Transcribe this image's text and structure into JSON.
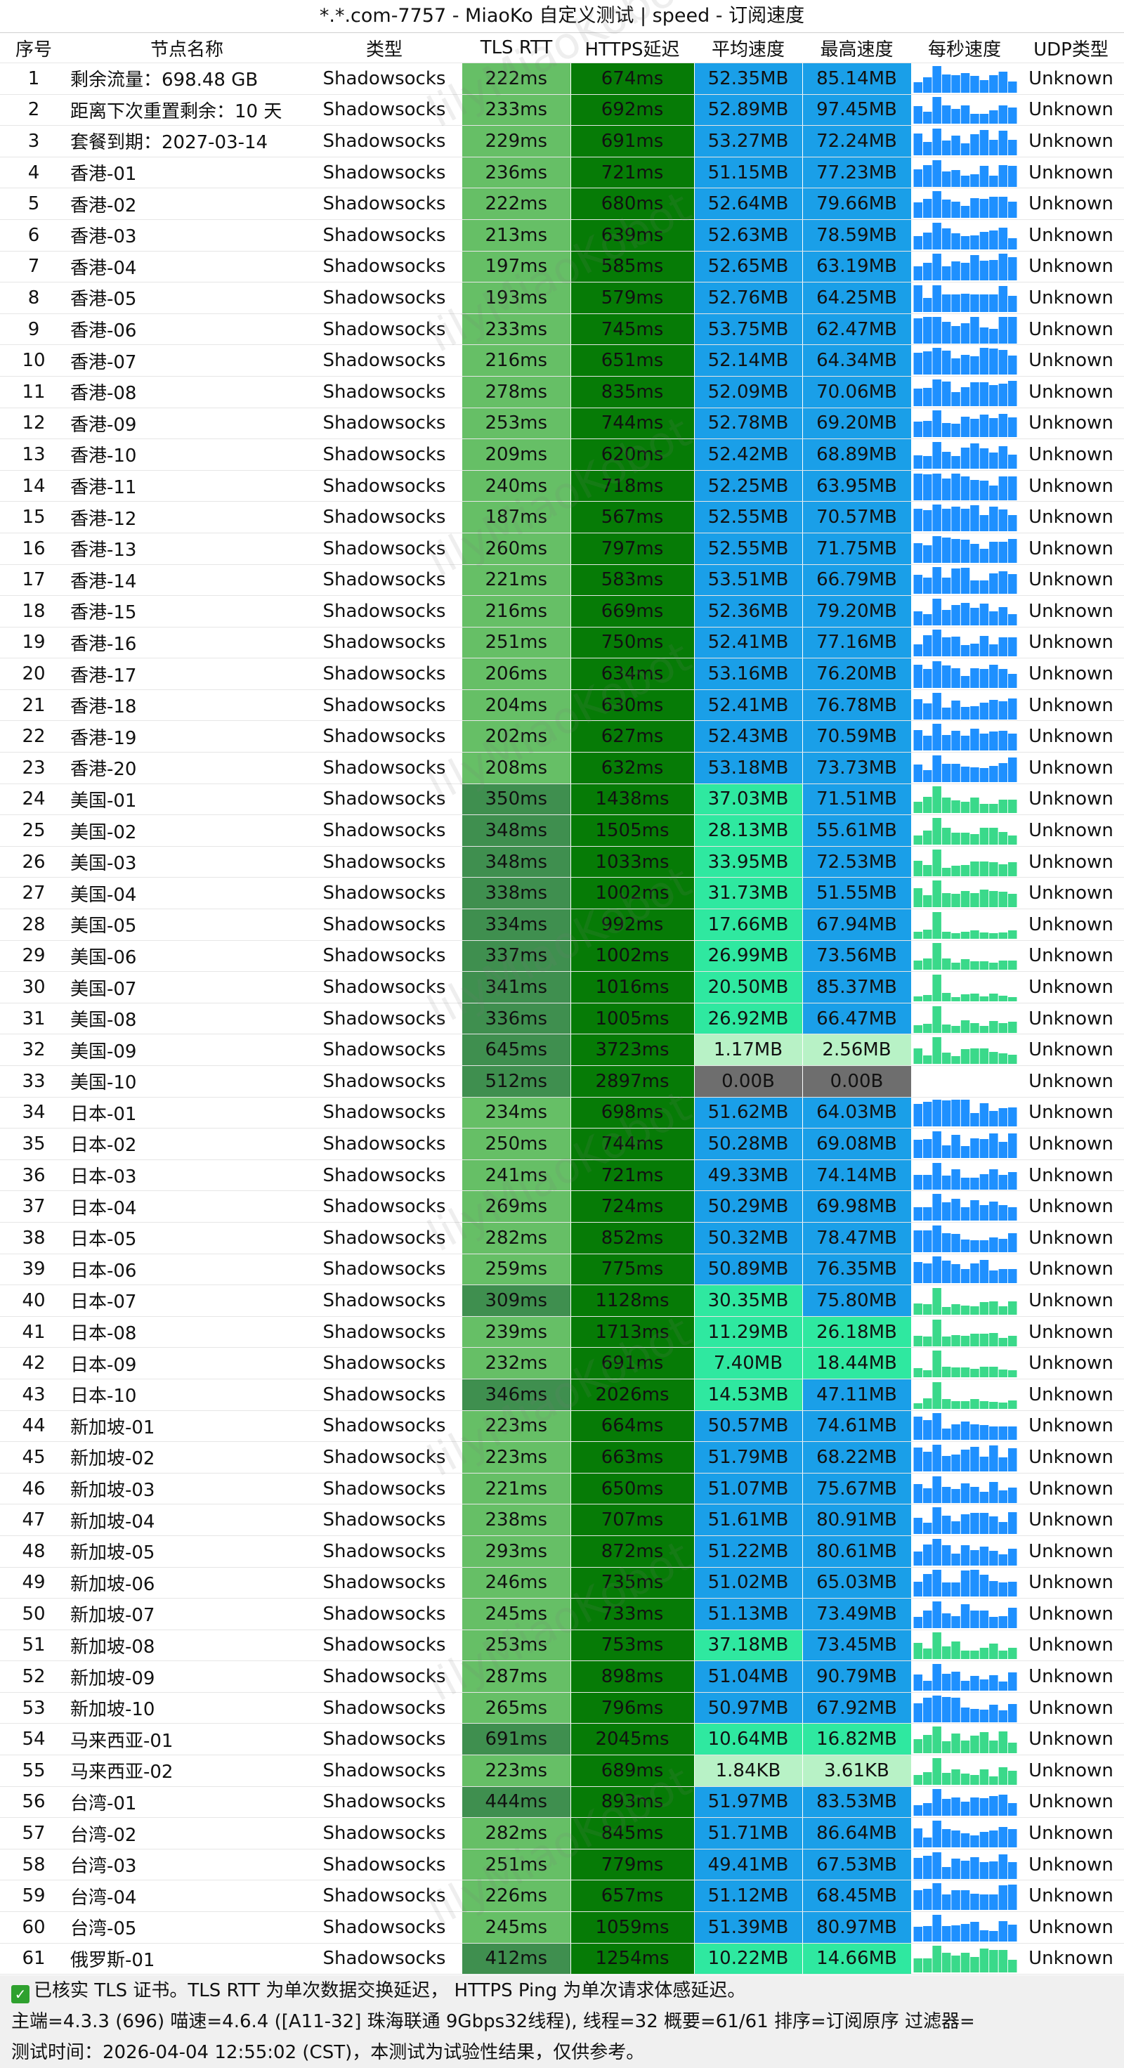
{
  "title": "*.*.com-7757 - MiaoKo 自定义测试 | speed - 订阅速度",
  "watermark": "lilyMiaoKobot",
  "headers": [
    "序号",
    "节点名称",
    "类型",
    "TLS RTT",
    "HTTPS延迟",
    "平均速度",
    "最高速度",
    "每秒速度",
    "UDP类型"
  ],
  "rows": [
    {
      "idx": "1",
      "name": "剩余流量：698.48 GB",
      "type": "Shadowsocks",
      "rtt": "222ms",
      "https": "674ms",
      "avg": "52.35MB",
      "max": "85.14MB",
      "udp": "Unknown"
    },
    {
      "idx": "2",
      "name": "距离下次重置剩余：10 天",
      "type": "Shadowsocks",
      "rtt": "233ms",
      "https": "692ms",
      "avg": "52.89MB",
      "max": "97.45MB",
      "udp": "Unknown"
    },
    {
      "idx": "3",
      "name": "套餐到期：2027-03-14",
      "type": "Shadowsocks",
      "rtt": "229ms",
      "https": "691ms",
      "avg": "53.27MB",
      "max": "72.24MB",
      "udp": "Unknown"
    },
    {
      "idx": "4",
      "name": "香港-01",
      "type": "Shadowsocks",
      "rtt": "236ms",
      "https": "721ms",
      "avg": "51.15MB",
      "max": "77.23MB",
      "udp": "Unknown"
    },
    {
      "idx": "5",
      "name": "香港-02",
      "type": "Shadowsocks",
      "rtt": "222ms",
      "https": "680ms",
      "avg": "52.64MB",
      "max": "79.66MB",
      "udp": "Unknown"
    },
    {
      "idx": "6",
      "name": "香港-03",
      "type": "Shadowsocks",
      "rtt": "213ms",
      "https": "639ms",
      "avg": "52.63MB",
      "max": "78.59MB",
      "udp": "Unknown"
    },
    {
      "idx": "7",
      "name": "香港-04",
      "type": "Shadowsocks",
      "rtt": "197ms",
      "https": "585ms",
      "avg": "52.65MB",
      "max": "63.19MB",
      "udp": "Unknown"
    },
    {
      "idx": "8",
      "name": "香港-05",
      "type": "Shadowsocks",
      "rtt": "193ms",
      "https": "579ms",
      "avg": "52.76MB",
      "max": "64.25MB",
      "udp": "Unknown"
    },
    {
      "idx": "9",
      "name": "香港-06",
      "type": "Shadowsocks",
      "rtt": "233ms",
      "https": "745ms",
      "avg": "53.75MB",
      "max": "62.47MB",
      "udp": "Unknown"
    },
    {
      "idx": "10",
      "name": "香港-07",
      "type": "Shadowsocks",
      "rtt": "216ms",
      "https": "651ms",
      "avg": "52.14MB",
      "max": "64.34MB",
      "udp": "Unknown"
    },
    {
      "idx": "11",
      "name": "香港-08",
      "type": "Shadowsocks",
      "rtt": "278ms",
      "https": "835ms",
      "avg": "52.09MB",
      "max": "70.06MB",
      "udp": "Unknown"
    },
    {
      "idx": "12",
      "name": "香港-09",
      "type": "Shadowsocks",
      "rtt": "253ms",
      "https": "744ms",
      "avg": "52.78MB",
      "max": "69.20MB",
      "udp": "Unknown"
    },
    {
      "idx": "13",
      "name": "香港-10",
      "type": "Shadowsocks",
      "rtt": "209ms",
      "https": "620ms",
      "avg": "52.42MB",
      "max": "68.89MB",
      "udp": "Unknown"
    },
    {
      "idx": "14",
      "name": "香港-11",
      "type": "Shadowsocks",
      "rtt": "240ms",
      "https": "718ms",
      "avg": "52.25MB",
      "max": "63.95MB",
      "udp": "Unknown"
    },
    {
      "idx": "15",
      "name": "香港-12",
      "type": "Shadowsocks",
      "rtt": "187ms",
      "https": "567ms",
      "avg": "52.55MB",
      "max": "70.57MB",
      "udp": "Unknown"
    },
    {
      "idx": "16",
      "name": "香港-13",
      "type": "Shadowsocks",
      "rtt": "260ms",
      "https": "797ms",
      "avg": "52.55MB",
      "max": "71.75MB",
      "udp": "Unknown"
    },
    {
      "idx": "17",
      "name": "香港-14",
      "type": "Shadowsocks",
      "rtt": "221ms",
      "https": "583ms",
      "avg": "53.51MB",
      "max": "66.79MB",
      "udp": "Unknown"
    },
    {
      "idx": "18",
      "name": "香港-15",
      "type": "Shadowsocks",
      "rtt": "216ms",
      "https": "669ms",
      "avg": "52.36MB",
      "max": "79.20MB",
      "udp": "Unknown"
    },
    {
      "idx": "19",
      "name": "香港-16",
      "type": "Shadowsocks",
      "rtt": "251ms",
      "https": "750ms",
      "avg": "52.41MB",
      "max": "77.16MB",
      "udp": "Unknown"
    },
    {
      "idx": "20",
      "name": "香港-17",
      "type": "Shadowsocks",
      "rtt": "206ms",
      "https": "634ms",
      "avg": "53.16MB",
      "max": "76.20MB",
      "udp": "Unknown"
    },
    {
      "idx": "21",
      "name": "香港-18",
      "type": "Shadowsocks",
      "rtt": "204ms",
      "https": "630ms",
      "avg": "52.41MB",
      "max": "76.78MB",
      "udp": "Unknown"
    },
    {
      "idx": "22",
      "name": "香港-19",
      "type": "Shadowsocks",
      "rtt": "202ms",
      "https": "627ms",
      "avg": "52.43MB",
      "max": "70.59MB",
      "udp": "Unknown"
    },
    {
      "idx": "23",
      "name": "香港-20",
      "type": "Shadowsocks",
      "rtt": "208ms",
      "https": "632ms",
      "avg": "53.18MB",
      "max": "73.73MB",
      "udp": "Unknown"
    },
    {
      "idx": "24",
      "name": "美国-01",
      "type": "Shadowsocks",
      "rtt": "350ms",
      "https": "1438ms",
      "avg": "37.03MB",
      "max": "71.51MB",
      "udp": "Unknown"
    },
    {
      "idx": "25",
      "name": "美国-02",
      "type": "Shadowsocks",
      "rtt": "348ms",
      "https": "1505ms",
      "avg": "28.13MB",
      "max": "55.61MB",
      "udp": "Unknown"
    },
    {
      "idx": "26",
      "name": "美国-03",
      "type": "Shadowsocks",
      "rtt": "348ms",
      "https": "1033ms",
      "avg": "33.95MB",
      "max": "72.53MB",
      "udp": "Unknown"
    },
    {
      "idx": "27",
      "name": "美国-04",
      "type": "Shadowsocks",
      "rtt": "338ms",
      "https": "1002ms",
      "avg": "31.73MB",
      "max": "51.55MB",
      "udp": "Unknown"
    },
    {
      "idx": "28",
      "name": "美国-05",
      "type": "Shadowsocks",
      "rtt": "334ms",
      "https": "992ms",
      "avg": "17.66MB",
      "max": "67.94MB",
      "udp": "Unknown"
    },
    {
      "idx": "29",
      "name": "美国-06",
      "type": "Shadowsocks",
      "rtt": "337ms",
      "https": "1002ms",
      "avg": "26.99MB",
      "max": "73.56MB",
      "udp": "Unknown"
    },
    {
      "idx": "30",
      "name": "美国-07",
      "type": "Shadowsocks",
      "rtt": "341ms",
      "https": "1016ms",
      "avg": "20.50MB",
      "max": "85.37MB",
      "udp": "Unknown"
    },
    {
      "idx": "31",
      "name": "美国-08",
      "type": "Shadowsocks",
      "rtt": "336ms",
      "https": "1005ms",
      "avg": "26.92MB",
      "max": "66.47MB",
      "udp": "Unknown"
    },
    {
      "idx": "32",
      "name": "美国-09",
      "type": "Shadowsocks",
      "rtt": "645ms",
      "https": "3723ms",
      "avg": "1.17MB",
      "max": "2.56MB",
      "udp": "Unknown"
    },
    {
      "idx": "33",
      "name": "美国-10",
      "type": "Shadowsocks",
      "rtt": "512ms",
      "https": "2897ms",
      "avg": "0.00B",
      "max": "0.00B",
      "udp": "Unknown"
    },
    {
      "idx": "34",
      "name": "日本-01",
      "type": "Shadowsocks",
      "rtt": "234ms",
      "https": "698ms",
      "avg": "51.62MB",
      "max": "64.03MB",
      "udp": "Unknown"
    },
    {
      "idx": "35",
      "name": "日本-02",
      "type": "Shadowsocks",
      "rtt": "250ms",
      "https": "744ms",
      "avg": "50.28MB",
      "max": "69.08MB",
      "udp": "Unknown"
    },
    {
      "idx": "36",
      "name": "日本-03",
      "type": "Shadowsocks",
      "rtt": "241ms",
      "https": "721ms",
      "avg": "49.33MB",
      "max": "74.14MB",
      "udp": "Unknown"
    },
    {
      "idx": "37",
      "name": "日本-04",
      "type": "Shadowsocks",
      "rtt": "269ms",
      "https": "724ms",
      "avg": "50.29MB",
      "max": "69.98MB",
      "udp": "Unknown"
    },
    {
      "idx": "38",
      "name": "日本-05",
      "type": "Shadowsocks",
      "rtt": "282ms",
      "https": "852ms",
      "avg": "50.32MB",
      "max": "78.47MB",
      "udp": "Unknown"
    },
    {
      "idx": "39",
      "name": "日本-06",
      "type": "Shadowsocks",
      "rtt": "259ms",
      "https": "775ms",
      "avg": "50.89MB",
      "max": "76.35MB",
      "udp": "Unknown"
    },
    {
      "idx": "40",
      "name": "日本-07",
      "type": "Shadowsocks",
      "rtt": "309ms",
      "https": "1128ms",
      "avg": "30.35MB",
      "max": "75.80MB",
      "udp": "Unknown"
    },
    {
      "idx": "41",
      "name": "日本-08",
      "type": "Shadowsocks",
      "rtt": "239ms",
      "https": "1713ms",
      "avg": "11.29MB",
      "max": "26.18MB",
      "udp": "Unknown"
    },
    {
      "idx": "42",
      "name": "日本-09",
      "type": "Shadowsocks",
      "rtt": "232ms",
      "https": "691ms",
      "avg": "7.40MB",
      "max": "18.44MB",
      "udp": "Unknown"
    },
    {
      "idx": "43",
      "name": "日本-10",
      "type": "Shadowsocks",
      "rtt": "346ms",
      "https": "2026ms",
      "avg": "14.53MB",
      "max": "47.11MB",
      "udp": "Unknown"
    },
    {
      "idx": "44",
      "name": "新加坡-01",
      "type": "Shadowsocks",
      "rtt": "223ms",
      "https": "664ms",
      "avg": "50.57MB",
      "max": "74.61MB",
      "udp": "Unknown"
    },
    {
      "idx": "45",
      "name": "新加坡-02",
      "type": "Shadowsocks",
      "rtt": "223ms",
      "https": "663ms",
      "avg": "51.79MB",
      "max": "68.22MB",
      "udp": "Unknown"
    },
    {
      "idx": "46",
      "name": "新加坡-03",
      "type": "Shadowsocks",
      "rtt": "221ms",
      "https": "650ms",
      "avg": "51.07MB",
      "max": "75.67MB",
      "udp": "Unknown"
    },
    {
      "idx": "47",
      "name": "新加坡-04",
      "type": "Shadowsocks",
      "rtt": "238ms",
      "https": "707ms",
      "avg": "51.61MB",
      "max": "80.91MB",
      "udp": "Unknown"
    },
    {
      "idx": "48",
      "name": "新加坡-05",
      "type": "Shadowsocks",
      "rtt": "293ms",
      "https": "872ms",
      "avg": "51.22MB",
      "max": "80.61MB",
      "udp": "Unknown"
    },
    {
      "idx": "49",
      "name": "新加坡-06",
      "type": "Shadowsocks",
      "rtt": "246ms",
      "https": "735ms",
      "avg": "51.02MB",
      "max": "65.03MB",
      "udp": "Unknown"
    },
    {
      "idx": "50",
      "name": "新加坡-07",
      "type": "Shadowsocks",
      "rtt": "245ms",
      "https": "733ms",
      "avg": "51.13MB",
      "max": "73.49MB",
      "udp": "Unknown"
    },
    {
      "idx": "51",
      "name": "新加坡-08",
      "type": "Shadowsocks",
      "rtt": "253ms",
      "https": "753ms",
      "avg": "37.18MB",
      "max": "73.45MB",
      "udp": "Unknown"
    },
    {
      "idx": "52",
      "name": "新加坡-09",
      "type": "Shadowsocks",
      "rtt": "287ms",
      "https": "898ms",
      "avg": "51.04MB",
      "max": "90.79MB",
      "udp": "Unknown"
    },
    {
      "idx": "53",
      "name": "新加坡-10",
      "type": "Shadowsocks",
      "rtt": "265ms",
      "https": "796ms",
      "avg": "50.97MB",
      "max": "67.92MB",
      "udp": "Unknown"
    },
    {
      "idx": "54",
      "name": "马来西亚-01",
      "type": "Shadowsocks",
      "rtt": "691ms",
      "https": "2045ms",
      "avg": "10.64MB",
      "max": "16.82MB",
      "udp": "Unknown"
    },
    {
      "idx": "55",
      "name": "马来西亚-02",
      "type": "Shadowsocks",
      "rtt": "223ms",
      "https": "689ms",
      "avg": "1.84KB",
      "max": "3.61KB",
      "udp": "Unknown"
    },
    {
      "idx": "56",
      "name": "台湾-01",
      "type": "Shadowsocks",
      "rtt": "444ms",
      "https": "893ms",
      "avg": "51.97MB",
      "max": "83.53MB",
      "udp": "Unknown"
    },
    {
      "idx": "57",
      "name": "台湾-02",
      "type": "Shadowsocks",
      "rtt": "282ms",
      "https": "845ms",
      "avg": "51.71MB",
      "max": "86.64MB",
      "udp": "Unknown"
    },
    {
      "idx": "58",
      "name": "台湾-03",
      "type": "Shadowsocks",
      "rtt": "251ms",
      "https": "779ms",
      "avg": "49.41MB",
      "max": "67.53MB",
      "udp": "Unknown"
    },
    {
      "idx": "59",
      "name": "台湾-04",
      "type": "Shadowsocks",
      "rtt": "226ms",
      "https": "657ms",
      "avg": "51.12MB",
      "max": "68.45MB",
      "udp": "Unknown"
    },
    {
      "idx": "60",
      "name": "台湾-05",
      "type": "Shadowsocks",
      "rtt": "245ms",
      "https": "1059ms",
      "avg": "51.39MB",
      "max": "80.97MB",
      "udp": "Unknown"
    },
    {
      "idx": "61",
      "name": "俄罗斯-01",
      "type": "Shadowsocks",
      "rtt": "412ms",
      "https": "1254ms",
      "avg": "10.22MB",
      "max": "14.66MB",
      "udp": "Unknown"
    }
  ],
  "footer": {
    "line1": "已核实 TLS 证书。TLS RTT 为单次数据交换延迟， HTTPS Ping 为单次请求体感延迟。",
    "line2": "主端=4.3.3 (696) 喵速=4.6.4 ([A11-32] 珠海联通 9Gbps32线程), 线程=32 概要=61/61 排序=订阅原序 过滤器=",
    "line3": "测试时间：2026-04-04 12:55:02 (CST)，本测试为试验性结果，仅供参考。"
  },
  "colors": {
    "rtt_light": "#66bf66",
    "rtt_dark": "#3f8f4f",
    "https_green": "#067b06",
    "speed_fast": "#1a9fe8",
    "speed_mid": "#2fe8a0",
    "speed_slow": "#b8f2c6",
    "speed_zero": "#6e6e6e",
    "spark_blue": "#1e90ff",
    "spark_green": "#3ad98a"
  }
}
